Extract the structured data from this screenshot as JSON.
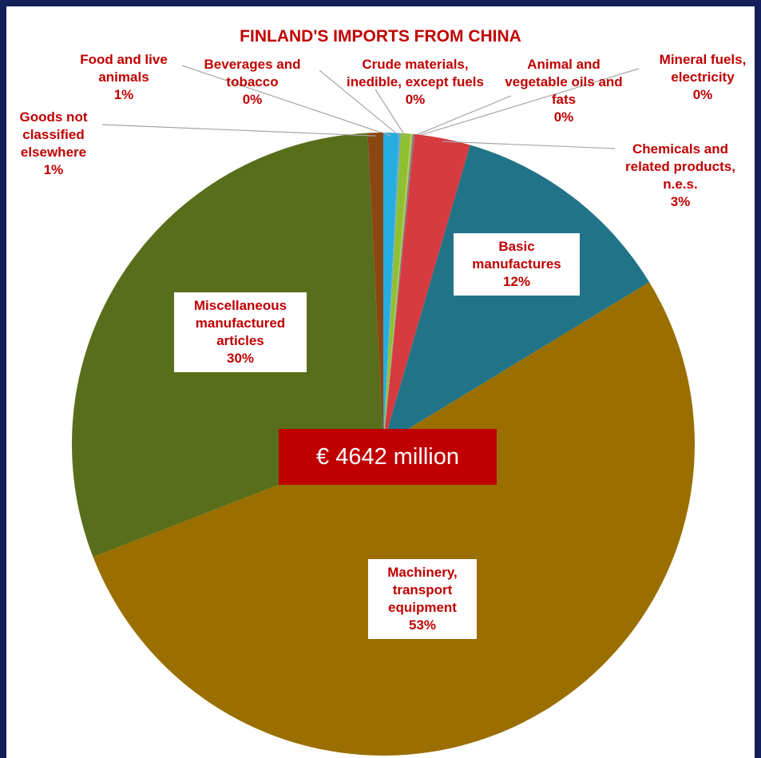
{
  "chart_data": {
    "type": "pie",
    "title": "FINLAND'S IMPORTS FROM CHINA",
    "annotation": "€ 4642 million",
    "categories": [
      "Food and live animals",
      "Beverages and tobacco",
      "Crude materials, inedible, except fuels",
      "Animal and vegetable oils and fats",
      "Mineral fuels, electricity",
      "Chemicals and related products, n.e.s.",
      "Basic manufactures",
      "Machinery, transport equipment",
      "Miscellaneous manufactured articles",
      "Goods not classified elsewhere"
    ],
    "values": [
      0.8,
      0.1,
      0.5,
      0.1,
      0.1,
      2.9,
      11.8,
      52.8,
      30.1,
      0.8
    ],
    "value_labels": [
      "1%",
      "0%",
      "0%",
      "0%",
      "0%",
      "3%",
      "12%",
      "53%",
      "30%",
      "1%"
    ],
    "colors": [
      "#25ade0",
      "#6fa8c8",
      "#8fc031",
      "#b5c95a",
      "#7f7f7f",
      "#d63b40",
      "#217488",
      "#9a6f00",
      "#596e1a",
      "#8b4712"
    ]
  }
}
